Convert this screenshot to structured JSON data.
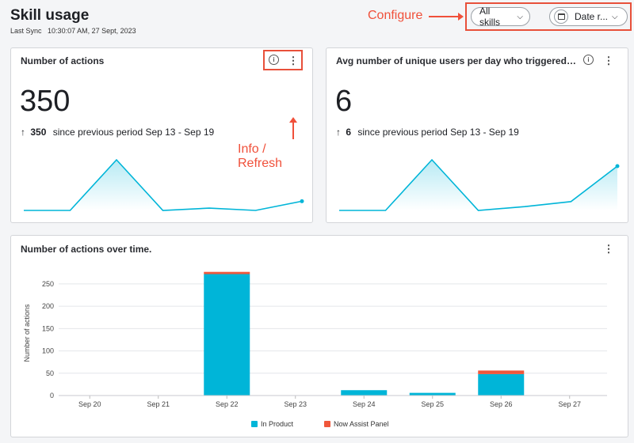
{
  "header": {
    "title": "Skill usage",
    "last_sync_label": "Last Sync",
    "last_sync_value": "10:30:07 AM, 27 Sept, 2023"
  },
  "filters": {
    "skills_label": "All skills",
    "date_label": "Date r..."
  },
  "annotations": {
    "configure": "Configure",
    "info_refresh": "Info / Refresh"
  },
  "icons": {
    "info": "info-icon",
    "kebab": "kebab-icon",
    "calendar": "calendar-icon",
    "chevron": "chevron-down-icon"
  },
  "colors": {
    "accent": "#00b5d8",
    "secondary": "#f0573b",
    "annotation": "#f0503a"
  },
  "card_actions": {
    "title": "Number of actions",
    "value": "350",
    "delta_arrow": "↑",
    "delta_value": "350",
    "delta_text": "since previous period Sep 13 - Sep 19",
    "sparkline": [
      0,
      0,
      22,
      0,
      1,
      0,
      4
    ]
  },
  "card_users": {
    "title": "Avg number of unique users per day who triggered actions",
    "value": "6",
    "delta_arrow": "↑",
    "delta_value": "6",
    "delta_text": "since previous period Sep 13 - Sep 19",
    "sparkline": [
      0,
      0,
      4,
      0,
      0.3,
      0.7,
      3.5
    ]
  },
  "chart_card": {
    "title": "Number of actions over time."
  },
  "chart_data": {
    "type": "bar",
    "stacked": true,
    "title": "Number of actions over time.",
    "ylabel": "Number of actions",
    "xlabel": "",
    "categories": [
      "Sep 20",
      "Sep 21",
      "Sep 22",
      "Sep 23",
      "Sep 24",
      "Sep 25",
      "Sep 26",
      "Sep 27"
    ],
    "yticks": [
      "0",
      "50",
      "100",
      "150",
      "200",
      "250"
    ],
    "ylim": [
      0,
      280
    ],
    "grid": true,
    "legend_position": "bottom",
    "series": [
      {
        "name": "In Product",
        "color": "#00b5d8",
        "values": [
          0,
          0,
          272,
          0,
          12,
          6,
          48,
          0
        ]
      },
      {
        "name": "Now Assist Panel",
        "color": "#f0573b",
        "values": [
          0,
          0,
          5,
          0,
          0,
          0,
          8,
          0
        ]
      }
    ]
  }
}
